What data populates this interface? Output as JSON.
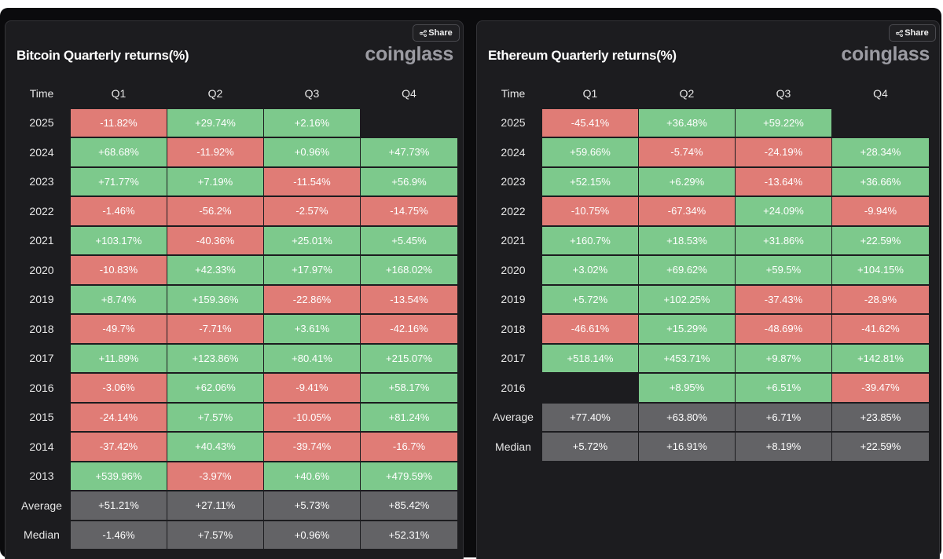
{
  "colors": {
    "positive": "#7dc98c",
    "negative": "#e07c76",
    "stat": "#636366",
    "background": "#1c1c1f"
  },
  "panels": [
    {
      "title": "Bitcoin Quarterly returns(%)",
      "brand": "coinglass",
      "share_label": "Share",
      "share_icon": "share-icon",
      "columns": [
        "Time",
        "Q1",
        "Q2",
        "Q3",
        "Q4"
      ],
      "rows": [
        {
          "label": "2025",
          "values": [
            "-11.82%",
            "+29.74%",
            "+2.16%",
            ""
          ]
        },
        {
          "label": "2024",
          "values": [
            "+68.68%",
            "-11.92%",
            "+0.96%",
            "+47.73%"
          ]
        },
        {
          "label": "2023",
          "values": [
            "+71.77%",
            "+7.19%",
            "-11.54%",
            "+56.9%"
          ]
        },
        {
          "label": "2022",
          "values": [
            "-1.46%",
            "-56.2%",
            "-2.57%",
            "-14.75%"
          ]
        },
        {
          "label": "2021",
          "values": [
            "+103.17%",
            "-40.36%",
            "+25.01%",
            "+5.45%"
          ]
        },
        {
          "label": "2020",
          "values": [
            "-10.83%",
            "+42.33%",
            "+17.97%",
            "+168.02%"
          ]
        },
        {
          "label": "2019",
          "values": [
            "+8.74%",
            "+159.36%",
            "-22.86%",
            "-13.54%"
          ]
        },
        {
          "label": "2018",
          "values": [
            "-49.7%",
            "-7.71%",
            "+3.61%",
            "-42.16%"
          ]
        },
        {
          "label": "2017",
          "values": [
            "+11.89%",
            "+123.86%",
            "+80.41%",
            "+215.07%"
          ]
        },
        {
          "label": "2016",
          "values": [
            "-3.06%",
            "+62.06%",
            "-9.41%",
            "+58.17%"
          ]
        },
        {
          "label": "2015",
          "values": [
            "-24.14%",
            "+7.57%",
            "-10.05%",
            "+81.24%"
          ]
        },
        {
          "label": "2014",
          "values": [
            "-37.42%",
            "+40.43%",
            "-39.74%",
            "-16.7%"
          ]
        },
        {
          "label": "2013",
          "values": [
            "+539.96%",
            "-3.97%",
            "+40.6%",
            "+479.59%"
          ]
        }
      ],
      "stats": [
        {
          "label": "Average",
          "values": [
            "+51.21%",
            "+27.11%",
            "+5.73%",
            "+85.42%"
          ]
        },
        {
          "label": "Median",
          "values": [
            "-1.46%",
            "+7.57%",
            "+0.96%",
            "+52.31%"
          ]
        }
      ]
    },
    {
      "title": "Ethereum Quarterly returns(%)",
      "brand": "coinglass",
      "share_label": "Share",
      "share_icon": "share-icon",
      "columns": [
        "Time",
        "Q1",
        "Q2",
        "Q3",
        "Q4"
      ],
      "rows": [
        {
          "label": "2025",
          "values": [
            "-45.41%",
            "+36.48%",
            "+59.22%",
            ""
          ]
        },
        {
          "label": "2024",
          "values": [
            "+59.66%",
            "-5.74%",
            "-24.19%",
            "+28.34%"
          ]
        },
        {
          "label": "2023",
          "values": [
            "+52.15%",
            "+6.29%",
            "-13.64%",
            "+36.66%"
          ]
        },
        {
          "label": "2022",
          "values": [
            "-10.75%",
            "-67.34%",
            "+24.09%",
            "-9.94%"
          ]
        },
        {
          "label": "2021",
          "values": [
            "+160.7%",
            "+18.53%",
            "+31.86%",
            "+22.59%"
          ]
        },
        {
          "label": "2020",
          "values": [
            "+3.02%",
            "+69.62%",
            "+59.5%",
            "+104.15%"
          ]
        },
        {
          "label": "2019",
          "values": [
            "+5.72%",
            "+102.25%",
            "-37.43%",
            "-28.9%"
          ]
        },
        {
          "label": "2018",
          "values": [
            "-46.61%",
            "+15.29%",
            "-48.69%",
            "-41.62%"
          ]
        },
        {
          "label": "2017",
          "values": [
            "+518.14%",
            "+453.71%",
            "+9.87%",
            "+142.81%"
          ]
        },
        {
          "label": "2016",
          "values": [
            "",
            "+8.95%",
            "+6.51%",
            "-39.47%"
          ]
        }
      ],
      "stats": [
        {
          "label": "Average",
          "values": [
            "+77.40%",
            "+63.80%",
            "+6.71%",
            "+23.85%"
          ]
        },
        {
          "label": "Median",
          "values": [
            "+5.72%",
            "+16.91%",
            "+8.19%",
            "+22.59%"
          ]
        }
      ]
    }
  ]
}
